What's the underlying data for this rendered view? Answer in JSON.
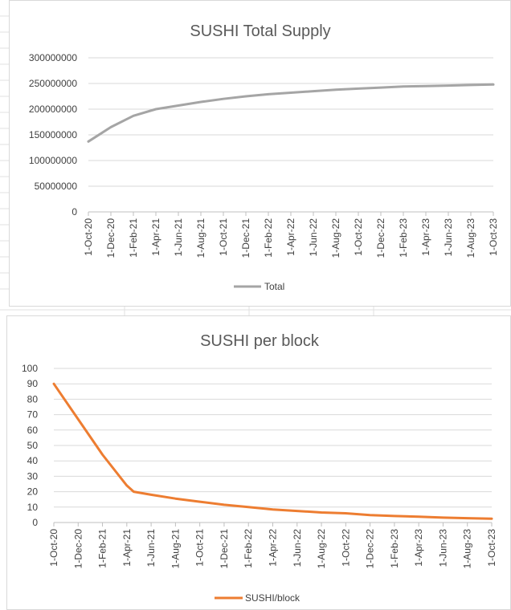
{
  "colors": {
    "gridline": "#d9d9d9",
    "axis": "#bfbfbf",
    "total_series": "#a5a5a5",
    "sushi_block_series": "#ed7d31"
  },
  "chart_data": [
    {
      "type": "line",
      "title": "SUSHI Total Supply",
      "xlabel": "",
      "ylabel": "",
      "ylim": [
        0,
        300000000
      ],
      "grid": true,
      "legend_position": "bottom",
      "y_ticks": [
        "0",
        "50000000",
        "100000000",
        "150000000",
        "200000000",
        "250000000",
        "300000000"
      ],
      "categories": [
        "1-Oct-20",
        "1-Dec-20",
        "1-Feb-21",
        "1-Apr-21",
        "1-Jun-21",
        "1-Aug-21",
        "1-Oct-21",
        "1-Dec-21",
        "1-Feb-22",
        "1-Apr-22",
        "1-Jun-22",
        "1-Aug-22",
        "1-Oct-22",
        "1-Dec-22",
        "1-Feb-23",
        "1-Apr-23",
        "1-Jun-23",
        "1-Aug-23",
        "1-Oct-23"
      ],
      "series": [
        {
          "name": "Total",
          "values": [
            137000000,
            165000000,
            187000000,
            200000000,
            207000000,
            214000000,
            220000000,
            225000000,
            229000000,
            232000000,
            235000000,
            238000000,
            240000000,
            242000000,
            244000000,
            245000000,
            246000000,
            247000000,
            248000000
          ]
        }
      ]
    },
    {
      "type": "line",
      "title": "SUSHI per block",
      "xlabel": "",
      "ylabel": "",
      "ylim": [
        0,
        100
      ],
      "grid": true,
      "legend_position": "bottom",
      "y_ticks": [
        "0",
        "10",
        "20",
        "30",
        "40",
        "50",
        "60",
        "70",
        "80",
        "90",
        "100"
      ],
      "categories": [
        "1-Oct-20",
        "1-Dec-20",
        "1-Feb-21",
        "1-Apr-21",
        "1-Jun-21",
        "1-Aug-21",
        "1-Oct-21",
        "1-Dec-21",
        "1-Feb-22",
        "1-Apr-22",
        "1-Jun-22",
        "1-Aug-22",
        "1-Oct-22",
        "1-Dec-22",
        "1-Feb-23",
        "1-Apr-23",
        "1-Jun-23",
        "1-Aug-23",
        "1-Oct-23"
      ],
      "series": [
        {
          "name": "SUSHI/block",
          "points": [
            [
              "1-Oct-20",
              90
            ],
            [
              "1-Dec-20",
              67
            ],
            [
              "1-Feb-21",
              44
            ],
            [
              "1-Apr-21",
              24
            ],
            [
              "18-Apr-21",
              20
            ],
            [
              "1-Jun-21",
              18
            ],
            [
              "1-Aug-21",
              15.5
            ],
            [
              "1-Oct-21",
              13.5
            ],
            [
              "1-Dec-21",
              11.5
            ],
            [
              "1-Feb-22",
              10
            ],
            [
              "1-Apr-22",
              8.5
            ],
            [
              "1-Jun-22",
              7.5
            ],
            [
              "1-Aug-22",
              6.5
            ],
            [
              "1-Oct-22",
              6
            ],
            [
              "1-Dec-22",
              4.8
            ],
            [
              "1-Feb-23",
              4.2
            ],
            [
              "1-Apr-23",
              3.8
            ],
            [
              "1-Jun-23",
              3.2
            ],
            [
              "1-Aug-23",
              2.8
            ],
            [
              "1-Oct-23",
              2.5
            ]
          ]
        }
      ]
    }
  ]
}
